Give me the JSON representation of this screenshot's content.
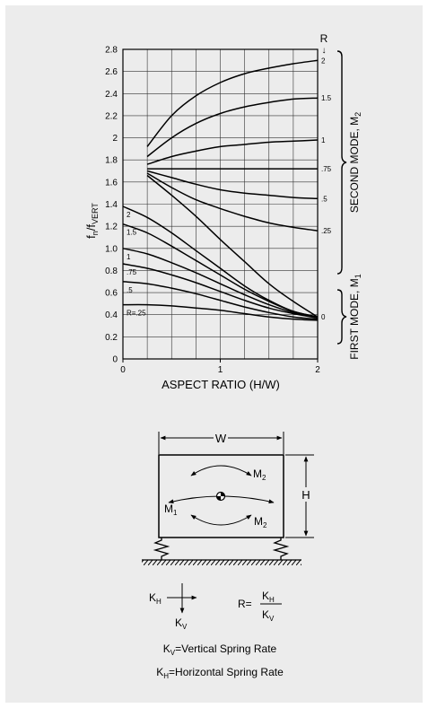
{
  "chart_data": {
    "type": "line",
    "xlabel": "ASPECT RATIO (H/W)",
    "ylabel": "fn/fVERT",
    "ylabel_parts": {
      "main": "f",
      "sub1": "n",
      "sep": "/f",
      "sub2": "VERT"
    },
    "xlim": [
      0,
      2
    ],
    "ylim": [
      0,
      2.8
    ],
    "x_ticks": [
      "0",
      "1",
      "2"
    ],
    "y_ticks": [
      "0",
      "0.2",
      "0.4",
      "0.6",
      "0.8",
      "1.0",
      "1.2",
      "1.4",
      "1.6",
      "1.8",
      "2",
      "2.2",
      "2.4",
      "2.6",
      "2.8"
    ],
    "x_tick_values": [
      0,
      1,
      2
    ],
    "y_tick_values": [
      0,
      0.2,
      0.4,
      0.6,
      0.8,
      1.0,
      1.2,
      1.4,
      1.6,
      1.8,
      2.0,
      2.2,
      2.4,
      2.6,
      2.8
    ],
    "grid": true,
    "r_header": "R",
    "r_arrow": "↓",
    "second_mode_label": "SECOND MODE, M",
    "second_mode_sub": "2",
    "first_mode_label": "FIRST MODE, M",
    "first_mode_sub": "1",
    "second_mode": [
      {
        "label": "2",
        "x": [
          0.25,
          0.5,
          0.75,
          1.0,
          1.25,
          1.5,
          1.75,
          2.0
        ],
        "y": [
          1.92,
          2.2,
          2.38,
          2.5,
          2.58,
          2.63,
          2.67,
          2.7
        ]
      },
      {
        "label": "1.5",
        "x": [
          0.25,
          0.5,
          0.75,
          1.0,
          1.25,
          1.5,
          1.75,
          2.0
        ],
        "y": [
          1.83,
          2.0,
          2.13,
          2.22,
          2.28,
          2.32,
          2.35,
          2.36
        ]
      },
      {
        "label": "1",
        "x": [
          0.25,
          0.5,
          0.75,
          1.0,
          1.25,
          1.5,
          1.75,
          2.0
        ],
        "y": [
          1.76,
          1.83,
          1.88,
          1.92,
          1.94,
          1.96,
          1.97,
          1.98
        ]
      },
      {
        "label": ".75",
        "x": [
          0.25,
          0.5,
          0.75,
          1.0,
          1.25,
          1.5,
          1.75,
          2.0
        ],
        "y": [
          1.72,
          1.72,
          1.72,
          1.72,
          1.72,
          1.72,
          1.72,
          1.72
        ]
      },
      {
        "label": ".5",
        "x": [
          0.25,
          0.5,
          0.75,
          1.0,
          1.25,
          1.5,
          1.75,
          2.0
        ],
        "y": [
          1.7,
          1.64,
          1.58,
          1.53,
          1.5,
          1.48,
          1.46,
          1.45
        ]
      },
      {
        "label": ".25",
        "x": [
          0.25,
          0.5,
          0.75,
          1.0,
          1.25,
          1.5,
          1.75,
          2.0
        ],
        "y": [
          1.68,
          1.55,
          1.44,
          1.36,
          1.29,
          1.23,
          1.19,
          1.16
        ]
      },
      {
        "label": "0",
        "x": [
          0.25,
          0.5,
          0.75,
          1.0,
          1.25,
          1.5,
          1.75,
          2.0
        ],
        "y": [
          1.66,
          1.48,
          1.29,
          1.08,
          0.88,
          0.68,
          0.52,
          0.38
        ]
      }
    ],
    "first_mode": [
      {
        "label": "2",
        "x": [
          0,
          0.25,
          0.5,
          0.75,
          1.0,
          1.25,
          1.5,
          1.75,
          2.0
        ],
        "y": [
          1.38,
          1.28,
          1.14,
          0.98,
          0.82,
          0.66,
          0.53,
          0.43,
          0.38
        ]
      },
      {
        "label": "1.5",
        "x": [
          0,
          0.25,
          0.5,
          0.75,
          1.0,
          1.25,
          1.5,
          1.75,
          2.0
        ],
        "y": [
          1.22,
          1.14,
          1.02,
          0.89,
          0.76,
          0.63,
          0.52,
          0.43,
          0.38
        ]
      },
      {
        "label": "1",
        "x": [
          0,
          0.25,
          0.5,
          0.75,
          1.0,
          1.25,
          1.5,
          1.75,
          2.0
        ],
        "y": [
          1.0,
          0.95,
          0.87,
          0.78,
          0.68,
          0.58,
          0.49,
          0.42,
          0.38
        ]
      },
      {
        "label": ".75",
        "x": [
          0,
          0.25,
          0.5,
          0.75,
          1.0,
          1.25,
          1.5,
          1.75,
          2.0
        ],
        "y": [
          0.86,
          0.82,
          0.76,
          0.69,
          0.61,
          0.53,
          0.46,
          0.41,
          0.37
        ]
      },
      {
        "label": ".5",
        "x": [
          0,
          0.25,
          0.5,
          0.75,
          1.0,
          1.25,
          1.5,
          1.75,
          2.0
        ],
        "y": [
          0.7,
          0.68,
          0.64,
          0.59,
          0.53,
          0.47,
          0.42,
          0.38,
          0.36
        ]
      },
      {
        "label": "R=.25",
        "x": [
          0,
          0.25,
          0.5,
          0.75,
          1.0,
          1.25,
          1.5,
          1.75,
          2.0
        ],
        "y": [
          0.49,
          0.49,
          0.48,
          0.46,
          0.44,
          0.41,
          0.38,
          0.36,
          0.35
        ]
      }
    ]
  },
  "diagram": {
    "width_label": "W",
    "height_label": "H",
    "mode2_top": {
      "main": "M",
      "sub": "2"
    },
    "mode1": {
      "main": "M",
      "sub": "1"
    },
    "mode2_bottom": {
      "main": "M",
      "sub": "2"
    },
    "kh_arrow": {
      "main": "K",
      "sub": "H"
    },
    "kv_arrow": {
      "main": "K",
      "sub": "V"
    },
    "ratio_prefix": "R=",
    "ratio_num": {
      "main": "K",
      "sub": "H"
    },
    "ratio_den": {
      "main": "K",
      "sub": "V"
    }
  },
  "legend": {
    "kv": {
      "main": "K",
      "sub": "V",
      "text": "=Vertical Spring Rate"
    },
    "kh": {
      "main": "K",
      "sub": "H",
      "text": "=Horizontal Spring Rate"
    }
  }
}
